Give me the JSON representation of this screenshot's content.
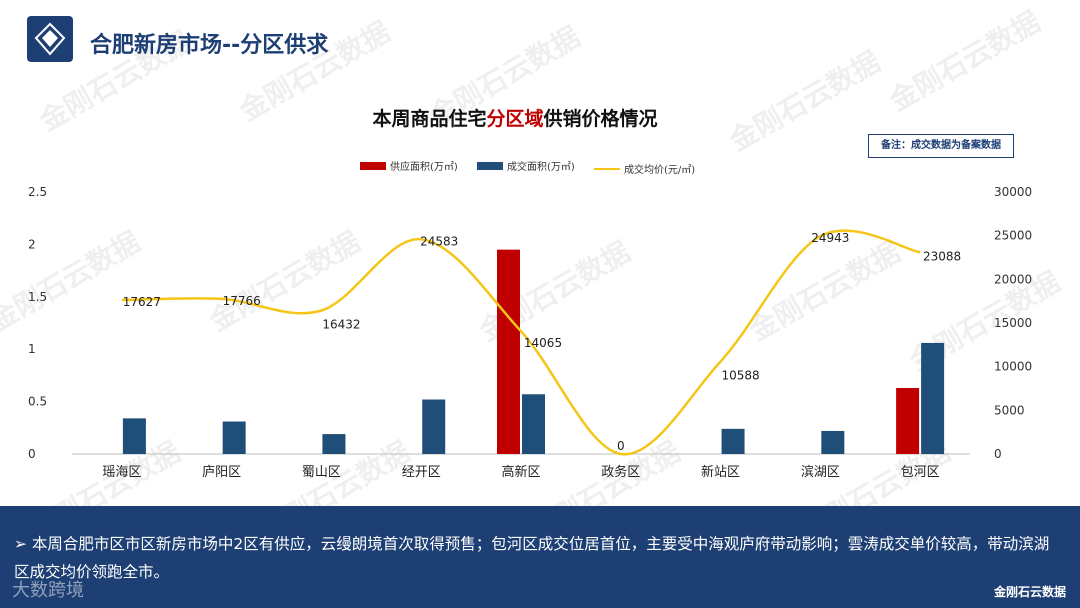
{
  "header": {
    "title": "合肥新房市场--分区供求"
  },
  "watermark_text": "金刚石云数据",
  "note": "备注：成交数据为备案数据",
  "colors": {
    "supply": "#c00000",
    "deal": "#1f4e79",
    "price": "#f5c518",
    "brand": "#1d3f74"
  },
  "chart_data": {
    "type": "bar",
    "title_parts": [
      "本周商品住宅",
      "分区域",
      "供销价格情况"
    ],
    "categories": [
      "瑶海区",
      "庐阳区",
      "蜀山区",
      "经开区",
      "高新区",
      "政务区",
      "新站区",
      "滨湖区",
      "包河区"
    ],
    "series": [
      {
        "name": "供应面积(万㎡)",
        "kind": "bar",
        "axis": "left",
        "values": [
          0,
          0,
          0,
          0,
          1.95,
          0,
          0,
          0,
          0.63
        ]
      },
      {
        "name": "成交面积(万㎡)",
        "kind": "bar",
        "axis": "left",
        "values": [
          0.34,
          0.31,
          0.19,
          0.52,
          0.57,
          0,
          0.24,
          0.22,
          1.06
        ]
      },
      {
        "name": "成交均价(元/㎡)",
        "kind": "line",
        "axis": "right",
        "values": [
          17627,
          17766,
          16432,
          24583,
          14065,
          0,
          10588,
          24943,
          23088
        ]
      }
    ],
    "left_axis": {
      "ticks": [
        "0",
        "0.5",
        "1",
        "1.5",
        "2",
        "2.5"
      ],
      "ylim": [
        0,
        2.5
      ]
    },
    "right_axis": {
      "ticks": [
        "0",
        "5000",
        "10000",
        "15000",
        "20000",
        "25000",
        "30000"
      ],
      "ylim": [
        0,
        30000
      ]
    },
    "legend_position": "top-center"
  },
  "summary": "本周合肥市区市区新房市场中2区有供应，云缦朗境首次取得预售；包河区成交位居首位，主要受中海观庐府带动影响；雲涛成交单价较高，带动滨湖区成交均价领跑全市。",
  "footer": {
    "brand": "金刚石云数据",
    "watermark": "大数跨境"
  }
}
